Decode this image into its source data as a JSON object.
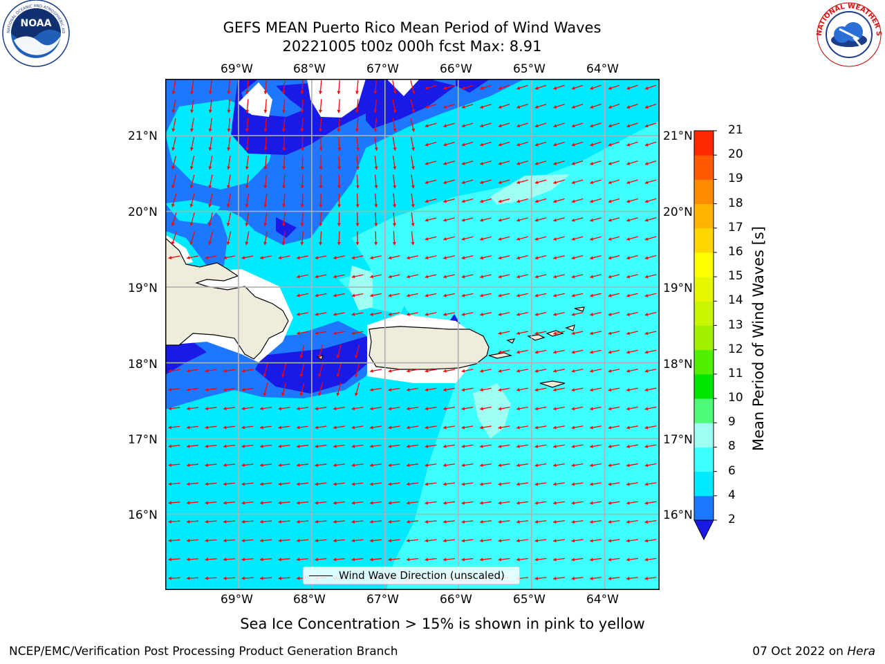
{
  "header": {
    "title_line1": "GEFS MEAN Puerto Rico Mean Period of Wind Waves",
    "title_line2": "20221005 t00z 000h fcst   Max: 8.91"
  },
  "logos": {
    "left": {
      "name": "noaa-logo",
      "text": "NOAA",
      "ring_text": "NATIONAL OCEANIC AND ATMOSPHERIC ADMINISTRATION · U.S. DEPARTMENT OF COMMERCE"
    },
    "right": {
      "name": "nws-logo",
      "ring_text": "NATIONAL WEATHER SERVICE"
    }
  },
  "map": {
    "lon_labels": [
      "69°W",
      "68°W",
      "67°W",
      "66°W",
      "65°W",
      "64°W"
    ],
    "lat_labels": [
      "21°N",
      "20°N",
      "19°N",
      "18°N",
      "17°N",
      "16°N"
    ],
    "lon_range": [
      -70.0,
      -63.25
    ],
    "lat_range": [
      15.0,
      21.75
    ],
    "grid": true,
    "land_color": "#efecdc",
    "arrow_color": "#ff0000",
    "legend_label": "Wind Wave Direction (unscaled)"
  },
  "colorbar": {
    "label": "Mean Period of Wind Waves [s]",
    "ticks": [
      "2",
      "4",
      "6",
      "8",
      "9",
      "10",
      "11",
      "12",
      "13",
      "14",
      "15",
      "16",
      "17",
      "18",
      "19",
      "20",
      "21"
    ],
    "colors": [
      "#0a1ef0",
      "#1e78ff",
      "#00eaff",
      "#40ffff",
      "#9efff2",
      "#4efa78",
      "#00e600",
      "#50f000",
      "#a0f000",
      "#c8f500",
      "#e6f800",
      "#ffff00",
      "#ffd700",
      "#ffb400",
      "#ff8c00",
      "#ff5a00",
      "#ff2800",
      "#ff0000"
    ],
    "extend": "min",
    "under_color": "#1a1ae6"
  },
  "notes": {
    "sea_ice": "Sea Ice Concentration > 15% is shown in pink to yellow",
    "branch": "NCEP/EMC/Verification Post Processing Product Generation Branch",
    "date_prefix": "07 Oct 2022 on ",
    "date_host": "Hera"
  }
}
